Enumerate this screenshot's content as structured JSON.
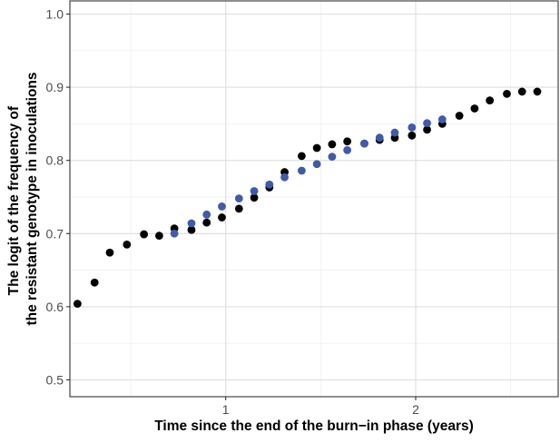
{
  "chart_data": {
    "type": "scatter",
    "title": "",
    "xlabel": "Time since the end of the burn−in phase (years)",
    "ylabel": [
      "The logit of the frequency of",
      "the resistant genotype in inoculations"
    ],
    "xlim": [
      0.18,
      2.75
    ],
    "ylim": [
      0.477,
      1.018
    ],
    "x_ticks": [
      1,
      2
    ],
    "x_tick_labels": [
      "1",
      "2"
    ],
    "x_minor_ticks": [
      0.5,
      1.5,
      2.5
    ],
    "y_ticks": [
      0.5,
      0.6,
      0.7,
      0.8,
      0.9,
      1.0
    ],
    "y_tick_labels": [
      "0.5",
      "0.6",
      "0.7",
      "0.8",
      "0.9",
      "1.0"
    ],
    "y_minor_ticks": [
      0.55,
      0.65,
      0.75,
      0.85,
      0.95
    ],
    "grid": true,
    "legend": "none",
    "series": [
      {
        "color": "#000000",
        "points": [
          [
            0.22,
            0.604
          ],
          [
            0.31,
            0.633
          ],
          [
            0.39,
            0.674
          ],
          [
            0.48,
            0.685
          ],
          [
            0.57,
            0.699
          ],
          [
            0.65,
            0.697
          ],
          [
            0.73,
            0.707
          ],
          [
            0.82,
            0.705
          ],
          [
            0.9,
            0.715
          ],
          [
            0.98,
            0.722
          ],
          [
            1.07,
            0.734
          ],
          [
            1.15,
            0.749
          ],
          [
            1.23,
            0.763
          ],
          [
            1.31,
            0.784
          ],
          [
            1.4,
            0.806
          ],
          [
            1.48,
            0.817
          ],
          [
            1.56,
            0.822
          ],
          [
            1.64,
            0.826
          ],
          [
            1.73,
            0.823
          ],
          [
            1.81,
            0.828
          ],
          [
            1.89,
            0.831
          ],
          [
            1.98,
            0.834
          ],
          [
            2.06,
            0.842
          ],
          [
            2.14,
            0.85
          ],
          [
            2.23,
            0.861
          ],
          [
            2.31,
            0.871
          ],
          [
            2.39,
            0.882
          ],
          [
            2.48,
            0.891
          ],
          [
            2.56,
            0.894
          ],
          [
            2.64,
            0.894
          ]
        ]
      },
      {
        "color": "#3f5ba9",
        "points": [
          [
            0.73,
            0.7
          ],
          [
            0.82,
            0.714
          ],
          [
            0.9,
            0.726
          ],
          [
            0.98,
            0.737
          ],
          [
            1.07,
            0.748
          ],
          [
            1.15,
            0.758
          ],
          [
            1.23,
            0.767
          ],
          [
            1.31,
            0.777
          ],
          [
            1.4,
            0.786
          ],
          [
            1.48,
            0.795
          ],
          [
            1.56,
            0.805
          ],
          [
            1.64,
            0.814
          ],
          [
            1.73,
            0.823
          ],
          [
            1.81,
            0.831
          ],
          [
            1.89,
            0.838
          ],
          [
            1.98,
            0.845
          ],
          [
            2.06,
            0.851
          ],
          [
            2.14,
            0.856
          ]
        ]
      }
    ]
  }
}
